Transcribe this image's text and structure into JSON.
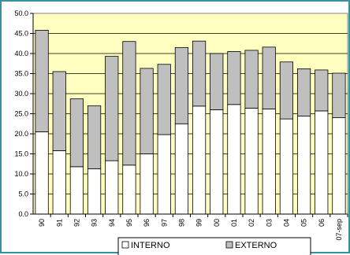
{
  "chart_data": {
    "type": "bar",
    "stacked": true,
    "categories": [
      "90",
      "91",
      "92",
      "93",
      "94",
      "95",
      "96",
      "97",
      "98",
      "99",
      "00",
      "01",
      "02",
      "03",
      "04",
      "05",
      "06",
      "07-sep"
    ],
    "series": [
      {
        "name": "INTERNO",
        "values": [
          20.5,
          15.8,
          11.8,
          11.3,
          13.3,
          12.2,
          15.0,
          19.8,
          22.5,
          26.9,
          26.0,
          27.3,
          26.4,
          26.2,
          23.7,
          24.4,
          25.7,
          24.0
        ],
        "color": "#ffffff"
      },
      {
        "name": "EXTERNO",
        "values": [
          25.3,
          19.7,
          16.9,
          15.7,
          26.0,
          30.8,
          21.3,
          17.5,
          19.0,
          16.2,
          14.0,
          13.2,
          14.4,
          15.4,
          14.2,
          11.8,
          10.2,
          11.1
        ],
        "color": "#bfbfbf"
      }
    ],
    "ylim": [
      0,
      50
    ],
    "yticks": [
      "0.0",
      "5.0",
      "10.0",
      "15.0",
      "20.0",
      "25.0",
      "30.0",
      "35.0",
      "40.0",
      "45.0",
      "50.0"
    ],
    "grid": true,
    "plot_background": "#ffffc0",
    "legend_position": "bottom"
  }
}
